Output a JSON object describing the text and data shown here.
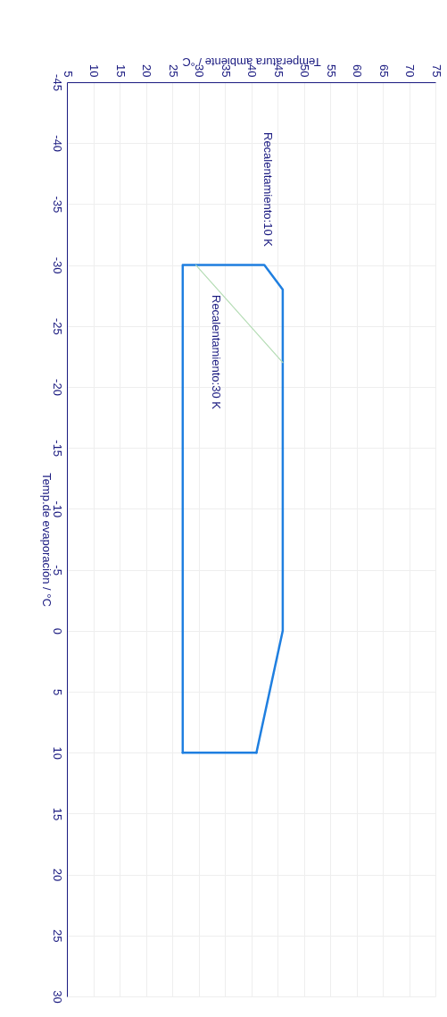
{
  "chart_data": {
    "type": "line",
    "xlabel": "Temperatura ambiente / °C",
    "ylabel": "Temp.de evaporación / °C",
    "xlim": [
      5,
      75
    ],
    "xticks": [
      5,
      10,
      15,
      20,
      25,
      30,
      35,
      40,
      45,
      50,
      55,
      60,
      65,
      70,
      75
    ],
    "ylim": [
      30,
      -45
    ],
    "yticks": [
      -45,
      -40,
      -35,
      -30,
      -25,
      -20,
      -15,
      -10,
      -5,
      0,
      5,
      10,
      15,
      20,
      25,
      30
    ],
    "grid": true,
    "legend": false,
    "series": [
      {
        "color": "#1f7fe0",
        "x": [
          27,
          27,
          42.5,
          46,
          46,
          41
        ],
        "values": [
          10,
          -30,
          -30,
          -28,
          0,
          10
        ]
      },
      {
        "color": "#1f7fe0",
        "x": [
          27,
          41
        ],
        "values": [
          10,
          10
        ]
      },
      {
        "color": "#b4dcb4",
        "x": [
          29.5,
          46
        ],
        "values": [
          -30,
          -22
        ]
      }
    ],
    "annotations": [
      "Recalentamiento:10 K",
      "Recalentamiento:30 K"
    ]
  }
}
